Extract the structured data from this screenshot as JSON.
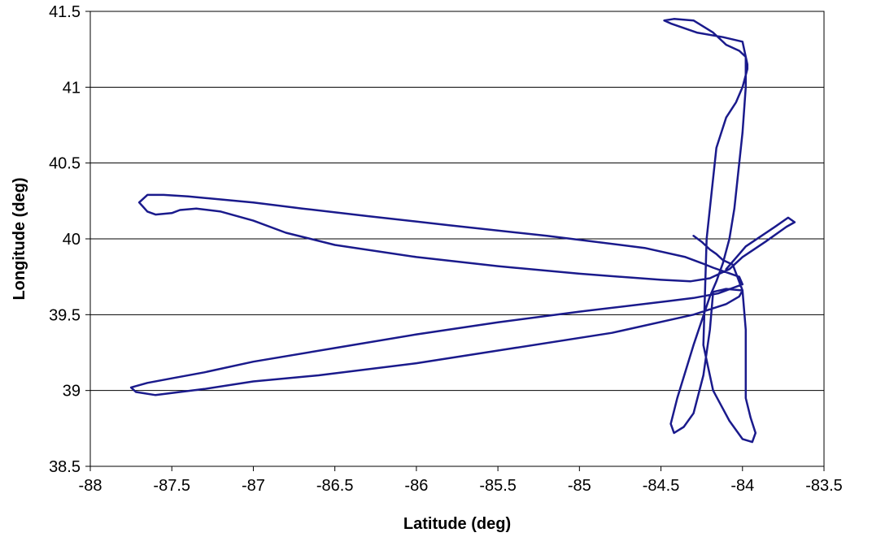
{
  "chart_data": {
    "type": "line",
    "xlabel": "Latitude (deg)",
    "ylabel": "Longitude (deg)",
    "xlim": [
      -88,
      -83.5
    ],
    "ylim": [
      38.5,
      41.5
    ],
    "x_ticks": [
      "-88",
      "-87.5",
      "-87",
      "-86.5",
      "-86",
      "-85.5",
      "-85",
      "-84.5",
      "-84",
      "-83.5"
    ],
    "y_ticks": [
      "38.5",
      "39",
      "39.5",
      "40",
      "40.5",
      "41",
      "41.5"
    ],
    "grid": "horizontal",
    "legend": "none",
    "line_color": "#1a1a8c",
    "series": [
      {
        "x": [
          -84.1,
          -84.02,
          -83.98,
          -83.8,
          -83.72,
          -83.68,
          -83.73,
          -83.86,
          -84.0,
          -84.08,
          -84.2,
          -84.32,
          -84.5,
          -85.0,
          -85.5,
          -86.0,
          -86.5,
          -86.8,
          -87.0,
          -87.2,
          -87.35,
          -87.45,
          -87.5,
          -87.6,
          -87.65,
          -87.7,
          -87.65,
          -87.55,
          -87.4,
          -87.2,
          -87.0,
          -86.7,
          -86.3,
          -85.8,
          -85.2,
          -84.6,
          -84.35,
          -84.25,
          -84.18,
          -84.1,
          -84.02,
          -84.0,
          -84.15,
          -84.3,
          -84.45,
          -85.0,
          -85.5,
          -86.0,
          -86.5,
          -87.0,
          -87.3,
          -87.5,
          -87.65,
          -87.75,
          -87.72,
          -87.6,
          -87.3,
          -87.0,
          -86.6,
          -86.0,
          -85.4,
          -84.8,
          -84.3,
          -84.1,
          -84.02,
          -84.0,
          -84.1,
          -84.18,
          -84.2,
          -84.24,
          -84.3,
          -84.36,
          -84.42,
          -84.44,
          -84.4,
          -84.3,
          -84.2,
          -84.16,
          -84.12,
          -84.1,
          -84.08,
          -84.05,
          -84.0,
          -83.98,
          -83.98,
          -84.0,
          -84.12,
          -84.28,
          -84.44,
          -84.48,
          -84.42,
          -84.3,
          -84.18,
          -84.1,
          -84.02,
          -83.98,
          -83.97,
          -83.97,
          -83.98,
          -84.0,
          -84.04,
          -84.1,
          -84.16,
          -84.22,
          -84.24,
          -84.18,
          -84.08,
          -84.0,
          -83.94,
          -83.92,
          -83.95,
          -83.98,
          -83.98,
          -84.0,
          -84.06,
          -84.12,
          -84.14,
          -84.16,
          -84.2,
          -84.25,
          -84.3
        ],
        "y": [
          39.8,
          39.9,
          39.95,
          40.08,
          40.14,
          40.11,
          40.08,
          39.98,
          39.88,
          39.8,
          39.74,
          39.72,
          39.73,
          39.77,
          39.82,
          39.88,
          39.96,
          40.04,
          40.12,
          40.18,
          40.2,
          40.19,
          40.17,
          40.16,
          40.18,
          40.24,
          40.29,
          40.29,
          40.28,
          40.26,
          40.24,
          40.2,
          40.15,
          40.09,
          40.02,
          39.94,
          39.88,
          39.84,
          39.81,
          39.78,
          39.75,
          39.7,
          39.64,
          39.61,
          39.59,
          39.52,
          39.45,
          39.37,
          39.28,
          39.19,
          39.12,
          39.08,
          39.05,
          39.02,
          38.99,
          38.97,
          39.01,
          39.06,
          39.1,
          39.18,
          39.28,
          39.38,
          39.5,
          39.57,
          39.62,
          39.66,
          39.67,
          39.65,
          39.4,
          39.1,
          38.85,
          38.76,
          38.72,
          38.78,
          38.95,
          39.3,
          39.62,
          39.72,
          39.84,
          39.92,
          40.0,
          40.2,
          40.7,
          41.0,
          41.2,
          41.3,
          41.33,
          41.36,
          41.42,
          41.44,
          41.45,
          41.44,
          41.36,
          41.28,
          41.24,
          41.2,
          41.15,
          41.12,
          41.08,
          41.0,
          40.9,
          40.8,
          40.6,
          40.0,
          39.3,
          39.0,
          38.8,
          38.68,
          38.66,
          38.72,
          38.82,
          38.95,
          39.4,
          39.66,
          39.83,
          39.86,
          39.88,
          39.9,
          39.93,
          39.98,
          40.02
        ]
      }
    ]
  }
}
